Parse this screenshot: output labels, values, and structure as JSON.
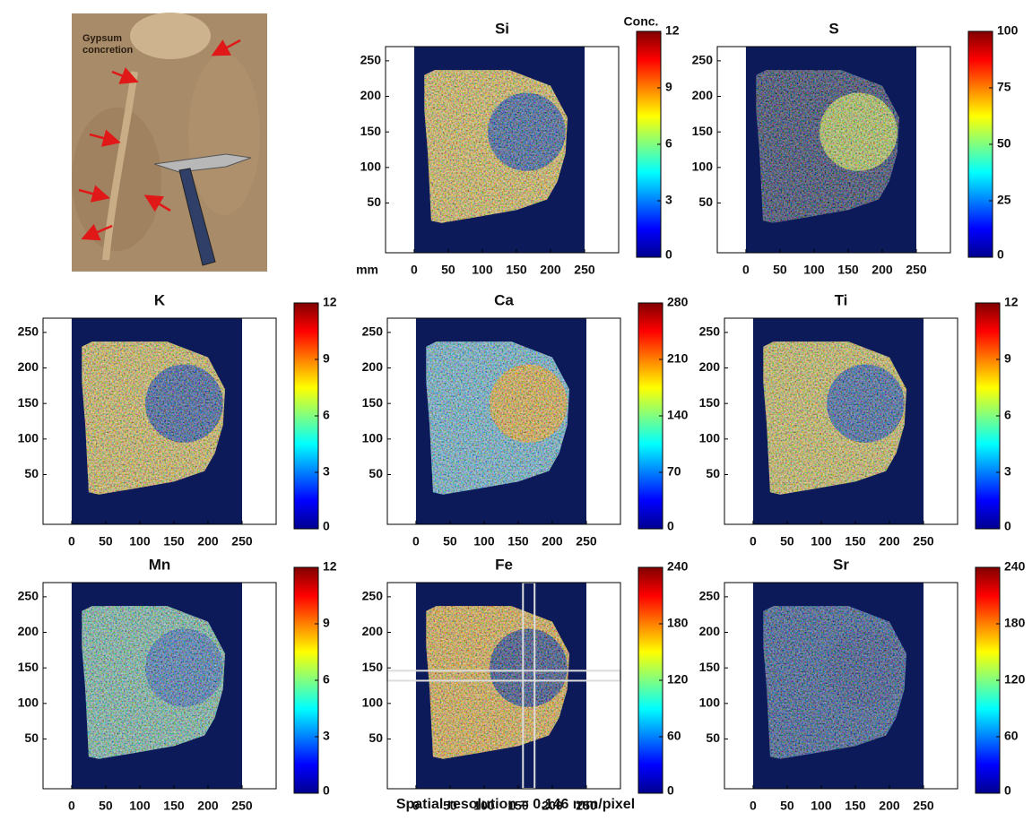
{
  "photo": {
    "label": [
      "Gypsum",
      "concretion"
    ]
  },
  "chart_data": [
    {
      "type": "heatmap",
      "title": "Si",
      "colormap": "jet",
      "xlabel": "mm",
      "colorbar_label": "Conc.",
      "xlim": [
        -42,
        300
      ],
      "ylim": [
        -20,
        270
      ],
      "xticks": [
        0,
        50,
        100,
        150,
        200,
        250
      ],
      "yticks": [
        50,
        100,
        150,
        200,
        250
      ],
      "clim": [
        0,
        12
      ],
      "cticks": [
        0,
        3,
        6,
        9,
        12
      ]
    },
    {
      "type": "heatmap",
      "title": "S",
      "colormap": "jet",
      "xlim": [
        -42,
        300
      ],
      "ylim": [
        -20,
        270
      ],
      "xticks": [
        0,
        50,
        100,
        150,
        200,
        250
      ],
      "yticks": [
        50,
        100,
        150,
        200,
        250
      ],
      "clim": [
        0,
        100
      ],
      "cticks": [
        0,
        25,
        50,
        75,
        100
      ]
    },
    {
      "type": "heatmap",
      "title": "K",
      "colormap": "jet",
      "xlim": [
        -42,
        300
      ],
      "ylim": [
        -20,
        270
      ],
      "xticks": [
        0,
        50,
        100,
        150,
        200,
        250
      ],
      "yticks": [
        50,
        100,
        150,
        200,
        250
      ],
      "clim": [
        0,
        12
      ],
      "cticks": [
        0,
        3,
        6,
        9,
        12
      ]
    },
    {
      "type": "heatmap",
      "title": "Ca",
      "colormap": "jet",
      "xlim": [
        -42,
        300
      ],
      "ylim": [
        -20,
        270
      ],
      "xticks": [
        0,
        50,
        100,
        150,
        200,
        250
      ],
      "yticks": [
        50,
        100,
        150,
        200,
        250
      ],
      "clim": [
        0,
        280
      ],
      "cticks": [
        0,
        70,
        140,
        210,
        280
      ]
    },
    {
      "type": "heatmap",
      "title": "Ti",
      "colormap": "jet",
      "xlim": [
        -42,
        300
      ],
      "ylim": [
        -20,
        270
      ],
      "xticks": [
        0,
        50,
        100,
        150,
        200,
        250
      ],
      "yticks": [
        50,
        100,
        150,
        200,
        250
      ],
      "clim": [
        0,
        12
      ],
      "cticks": [
        0,
        3,
        6,
        9,
        12
      ]
    },
    {
      "type": "heatmap",
      "title": "Mn",
      "colormap": "jet",
      "xlim": [
        -42,
        300
      ],
      "ylim": [
        -20,
        270
      ],
      "xticks": [
        0,
        50,
        100,
        150,
        200,
        250
      ],
      "yticks": [
        50,
        100,
        150,
        200,
        250
      ],
      "clim": [
        0,
        12
      ],
      "cticks": [
        0,
        3,
        6,
        9,
        12
      ]
    },
    {
      "type": "heatmap",
      "title": "Fe",
      "colormap": "jet",
      "xlim": [
        -42,
        300
      ],
      "ylim": [
        -20,
        270
      ],
      "xticks": [
        0,
        50,
        100,
        150,
        200,
        250
      ],
      "yticks": [
        50,
        100,
        150,
        200,
        250
      ],
      "clim": [
        0,
        240
      ],
      "cticks": [
        0,
        60,
        120,
        180,
        240
      ]
    },
    {
      "type": "heatmap",
      "title": "Sr",
      "colormap": "jet",
      "xlim": [
        -42,
        300
      ],
      "ylim": [
        -20,
        270
      ],
      "xticks": [
        0,
        50,
        100,
        150,
        200,
        250
      ],
      "yticks": [
        50,
        100,
        150,
        200,
        250
      ],
      "clim": [
        0,
        240
      ],
      "cticks": [
        0,
        60,
        120,
        180,
        240
      ]
    }
  ],
  "caption": "Spatial resolution = 0.146 mm/pixel"
}
